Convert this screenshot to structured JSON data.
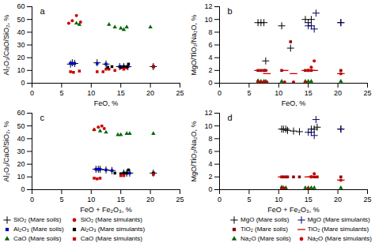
{
  "chart_data": [
    {
      "type": "scatter",
      "title": "a",
      "xlabel": "FeO, %",
      "ylabel": "Al₂O₃/CaO/SiO₂, %",
      "xlim": [
        0,
        25
      ],
      "ylim": [
        0,
        60
      ],
      "xticks": [
        0,
        5,
        10,
        15,
        20,
        25
      ],
      "yticks": [
        0,
        10,
        20,
        30,
        40,
        50,
        60
      ],
      "legend": "lower left",
      "series": [
        {
          "name": "SiO₂ (Mare soils)",
          "color": "#000000",
          "marker": "plus",
          "x": [
            6.5,
            6.8,
            7.2,
            11.0,
            12.5,
            14.8,
            15.5,
            16.2,
            20.5
          ],
          "values": [
            15,
            16,
            15.5,
            16,
            15,
            13,
            13,
            13,
            13
          ]
        },
        {
          "name": "Al₂O₃ (Mare soils)",
          "color": "#0000cc",
          "marker": "square",
          "x": [
            6.5,
            6.8,
            7.2,
            11.0,
            12.5,
            14.8,
            15.0,
            15.5,
            16.2,
            20.5
          ],
          "values": [
            15.5,
            15.5,
            15.5,
            15.5,
            15,
            13,
            13,
            13,
            13,
            13
          ]
        },
        {
          "name": "CaO (Mare soils)",
          "color": "#006600",
          "marker": "triangle",
          "x": [
            7.5,
            8.0,
            13.0,
            14.0,
            15.0,
            15.5,
            16.0,
            20.0
          ],
          "values": [
            47,
            46,
            46,
            44,
            43,
            42,
            44,
            44
          ]
        },
        {
          "name": "SiO₂ (Mare simulants)",
          "color": "#cc0000",
          "marker": "circle",
          "x": [
            6.2,
            6.8,
            7.5,
            8.2,
            12.5,
            13.0,
            15.0,
            16.0
          ],
          "values": [
            47,
            49,
            53,
            48,
            11,
            11,
            12,
            12
          ]
        },
        {
          "name": "Al₂O₃ (Mare simulants)",
          "color": "#000000",
          "marker": "square",
          "x": [
            12.8,
            13.5,
            15.0,
            15.5,
            16.0,
            16.3,
            20.5
          ],
          "values": [
            12.5,
            13,
            12.5,
            13,
            13,
            15,
            13
          ]
        },
        {
          "name": "CaO (Mare simulants)",
          "color": "#cc0000",
          "marker": "square",
          "x": [
            6.5,
            7.0,
            8.0,
            11.0,
            12.0,
            14.0,
            15.5,
            20.5
          ],
          "values": [
            9,
            8.5,
            9.5,
            9,
            9,
            10,
            11,
            13
          ]
        }
      ]
    },
    {
      "type": "scatter",
      "title": "b",
      "xlabel": "FeO, %",
      "ylabel": "MgO/TiO₂/Na₂O, %",
      "xlim": [
        0,
        25
      ],
      "ylim": [
        0,
        12
      ],
      "xticks": [
        0,
        5,
        10,
        15,
        20,
        25
      ],
      "yticks": [
        0,
        2,
        4,
        6,
        8,
        10,
        12
      ],
      "legend": "lower right",
      "series": [
        {
          "name": "MgO (Mare soils)",
          "color": "#000000",
          "marker": "plus",
          "x": [
            6.5,
            7.0,
            7.5,
            7.8,
            10.5,
            12.0,
            14.5,
            15.0,
            15.5,
            20.5
          ],
          "values": [
            9.5,
            9.5,
            9.5,
            3.5,
            9.0,
            5.5,
            10.0,
            9.5,
            10.0,
            9.5
          ]
        },
        {
          "name": "TiO₂ (Mare soils)",
          "color": "#8b0000",
          "marker": "square",
          "x": [
            6.5,
            7.0,
            7.5,
            7.8,
            10.5,
            12.0,
            14.5,
            15.0,
            15.5,
            20.5
          ],
          "values": [
            2.0,
            2.0,
            2.0,
            2.0,
            2.0,
            6.5,
            2.0,
            2.0,
            2.0,
            2.0
          ]
        },
        {
          "name": "Na₂O (Mare soils)",
          "color": "#006600",
          "marker": "triangle",
          "x": [
            6.5,
            7.0,
            7.5,
            7.8,
            10.5,
            14.5,
            15.0,
            15.5,
            20.5
          ],
          "values": [
            0.4,
            0.3,
            0.3,
            0.3,
            0.3,
            0.3,
            0.3,
            0.3,
            0.3
          ]
        },
        {
          "name": "MgO (Mare simulants)",
          "color": "#000066",
          "marker": "plus",
          "x": [
            15.0,
            15.5,
            16.0,
            16.3,
            20.5
          ],
          "values": [
            9.0,
            9.0,
            8.5,
            11.0,
            9.5
          ]
        },
        {
          "name": "TiO₂ (Mare simulants)",
          "color": "#cc0000",
          "marker": "hline",
          "x": [
            6.5,
            7.0,
            7.5,
            8.0,
            11.0,
            12.5,
            14.5,
            15.0,
            15.5,
            16.0,
            20.5
          ],
          "values": [
            2.0,
            2.0,
            2.0,
            1.5,
            2.0,
            1.5,
            2.0,
            2.0,
            2.0,
            2.0,
            1.5
          ]
        },
        {
          "name": "Na₂O (Mare simulants)",
          "color": "#cc0000",
          "marker": "circle",
          "x": [
            6.5,
            7.0,
            7.5,
            8.0,
            11.0,
            12.5,
            14.5,
            15.0,
            15.5,
            16.0,
            20.5
          ],
          "values": [
            0.2,
            0.2,
            0.2,
            0.2,
            0.2,
            0.2,
            0.2,
            2.0,
            2.5,
            3.5,
            1.5
          ]
        }
      ]
    },
    {
      "type": "scatter",
      "title": "c",
      "xlabel": "FeO + Fe₂O₃, %",
      "ylabel": "Al₂O₃/CaO/SiO₂, %",
      "xlim": [
        0,
        25
      ],
      "ylim": [
        0,
        60
      ],
      "xticks": [
        0,
        5,
        10,
        15,
        20,
        25
      ],
      "yticks": [
        0,
        10,
        20,
        30,
        40,
        50,
        60
      ],
      "series": [
        {
          "name": "SiO₂ (Mare soils)",
          "color": "#000000",
          "marker": "plus",
          "x": [
            10.8,
            11.2,
            11.5,
            12.5,
            13.5,
            15.5,
            16.0,
            16.5,
            20.5
          ],
          "values": [
            16,
            16,
            16,
            15.5,
            15,
            13,
            13,
            13,
            13
          ]
        },
        {
          "name": "Al₂O₃ (Mare soils)",
          "color": "#0000cc",
          "marker": "square",
          "x": [
            10.8,
            11.2,
            11.5,
            12.5,
            13.5,
            15.5,
            16.0,
            16.5,
            20.5
          ],
          "values": [
            16,
            16,
            16,
            15.5,
            15,
            13,
            13,
            13,
            13
          ]
        },
        {
          "name": "CaO (Mare soils)",
          "color": "#006600",
          "marker": "triangle",
          "x": [
            10.5,
            11.5,
            12.5,
            14.5,
            15.0,
            16.0,
            16.5,
            20.5
          ],
          "values": [
            47,
            46,
            45,
            43,
            43,
            44,
            44,
            44
          ]
        },
        {
          "name": "SiO₂ (Mare simulants)",
          "color": "#cc0000",
          "marker": "circle",
          "x": [
            10.5,
            11.2,
            11.8,
            12.2
          ],
          "values": [
            47,
            49,
            50,
            48
          ]
        },
        {
          "name": "Al₂O₃ (Mare simulants)",
          "color": "#000000",
          "marker": "square",
          "x": [
            14.0,
            15.0,
            15.5,
            16.0,
            16.3,
            20.5
          ],
          "values": [
            13,
            12.5,
            13,
            13,
            15.5,
            13
          ]
        },
        {
          "name": "CaO (Mare simulants)",
          "color": "#cc0000",
          "marker": "square",
          "x": [
            10.5,
            11.0,
            11.5,
            15.0,
            15.5,
            20.5
          ],
          "values": [
            9,
            8.5,
            9,
            11,
            11,
            12
          ]
        }
      ]
    },
    {
      "type": "scatter",
      "title": "d",
      "xlabel": "FeO + Fe₂O₃, %",
      "ylabel": "MgO/TiO₂/Na₂O, %",
      "xlim": [
        0,
        25
      ],
      "ylim": [
        0,
        12
      ],
      "xticks": [
        0,
        5,
        10,
        15,
        20,
        25
      ],
      "yticks": [
        0,
        2,
        4,
        6,
        8,
        10,
        12
      ],
      "series": [
        {
          "name": "MgO (Mare soils)",
          "color": "#000000",
          "marker": "plus",
          "x": [
            10.5,
            10.8,
            11.2,
            11.5,
            12.5,
            13.5,
            15.5,
            16.0,
            16.5,
            20.5
          ],
          "values": [
            9.5,
            9.5,
            9.5,
            9.3,
            9.2,
            9.1,
            9.5,
            9.5,
            9.8,
            9.5
          ]
        },
        {
          "name": "TiO₂ (Mare soils)",
          "color": "#8b0000",
          "marker": "square",
          "x": [
            10.5,
            10.8,
            11.2,
            11.5,
            12.5,
            13.5,
            15.5,
            16.0,
            16.5,
            20.5
          ],
          "values": [
            2.0,
            2.0,
            2.0,
            2.0,
            2.0,
            2.0,
            2.0,
            2.0,
            2.0,
            2.0
          ]
        },
        {
          "name": "Na₂O (Mare soils)",
          "color": "#006600",
          "marker": "triangle",
          "x": [
            10.5,
            10.8,
            11.2,
            14.5,
            15.0,
            15.5,
            16.0,
            20.5
          ],
          "values": [
            0.4,
            0.3,
            0.3,
            0.3,
            0.3,
            0.3,
            0.3,
            0.3
          ]
        },
        {
          "name": "MgO (Mare simulants)",
          "color": "#000066",
          "marker": "plus",
          "x": [
            15.0,
            15.5,
            16.0,
            16.3,
            20.5
          ],
          "values": [
            9.0,
            9.0,
            8.5,
            11.0,
            9.5
          ]
        },
        {
          "name": "TiO₂ (Mare simulants)",
          "color": "#cc0000",
          "marker": "hline",
          "x": [
            10.5,
            11.0,
            15.0,
            15.5,
            16.0,
            20.5
          ],
          "values": [
            2.0,
            2.0,
            2.0,
            2.0,
            2.0,
            1.5
          ]
        },
        {
          "name": "Na₂O (Mare simulants)",
          "color": "#cc0000",
          "marker": "circle",
          "x": [
            10.5,
            11.0,
            15.0,
            15.5,
            16.0,
            20.5
          ],
          "values": [
            0.2,
            0.2,
            0.2,
            2.0,
            2.5,
            1.5
          ]
        }
      ]
    }
  ]
}
